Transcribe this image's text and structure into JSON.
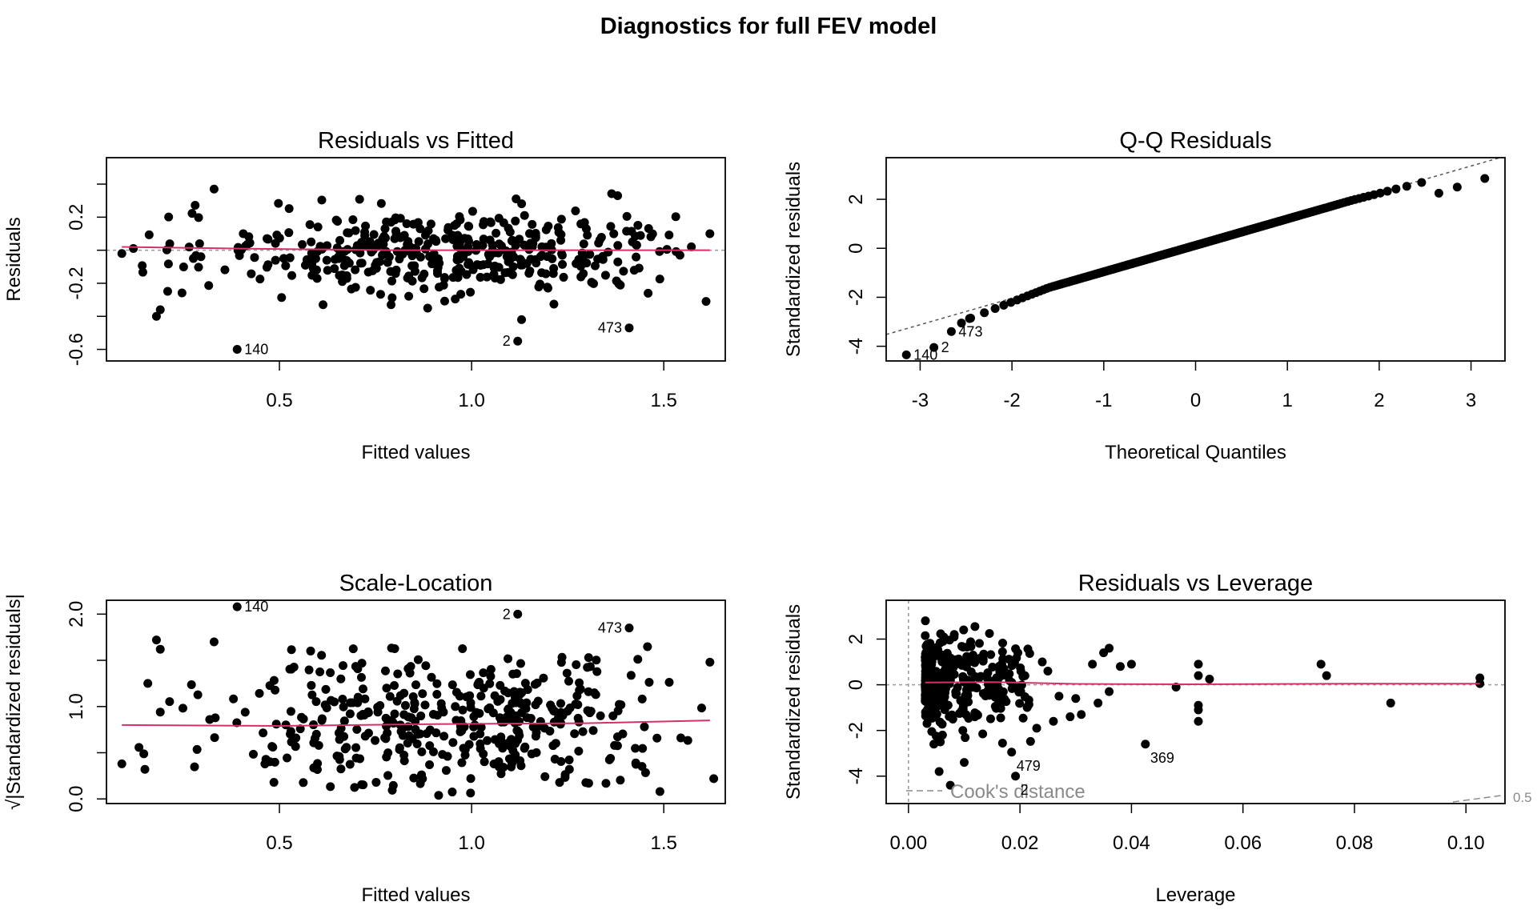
{
  "figure": {
    "title": "Diagnostics for full FEV model"
  },
  "chart_data": [
    {
      "type": "scatter",
      "panel": "residuals-vs-fitted",
      "title": "Residuals vs Fitted",
      "xlabel": "Fitted values",
      "ylabel": "Residuals",
      "xlim": [
        0.05,
        1.66
      ],
      "ylim": [
        -0.67,
        0.56
      ],
      "xticks": [
        0.5,
        1.0,
        1.5
      ],
      "xtick_labels": [
        "0.5",
        "1.0",
        "1.5"
      ],
      "yticks": [
        -0.6,
        -0.4,
        -0.2,
        0.0,
        0.2,
        0.4
      ],
      "ytick_labels": [
        "-0.6",
        "",
        "-0.2",
        "",
        "0.2",
        ""
      ],
      "ref_line": 0,
      "cloud": {
        "n": 420,
        "x_range": [
          0.12,
          1.6
        ],
        "x_center": 0.95,
        "y_sd": 0.13,
        "seed": 11
      },
      "points": [
        {
          "x": 0.09,
          "y": -0.02
        },
        {
          "x": 0.18,
          "y": -0.4
        },
        {
          "x": 0.19,
          "y": -0.36
        },
        {
          "x": 0.33,
          "y": 0.37
        },
        {
          "x": 1.38,
          "y": 0.33
        },
        {
          "x": 1.61,
          "y": -0.31
        },
        {
          "x": 1.62,
          "y": 0.1
        },
        {
          "x": 1.13,
          "y": -0.42
        },
        {
          "x": 0.39,
          "y": -0.6
        },
        {
          "x": 1.12,
          "y": -0.55
        },
        {
          "x": 1.41,
          "y": -0.47
        }
      ],
      "labeled_points": [
        {
          "label": "140",
          "x": 0.39,
          "y": -0.6,
          "side": "right"
        },
        {
          "label": "2",
          "x": 1.12,
          "y": -0.55,
          "side": "left"
        },
        {
          "label": "473",
          "x": 1.41,
          "y": -0.47,
          "side": "left"
        }
      ],
      "smooth": [
        [
          0.09,
          0.02
        ],
        [
          0.4,
          0.01
        ],
        [
          0.8,
          0.0
        ],
        [
          1.2,
          0.0
        ],
        [
          1.62,
          0.0
        ]
      ]
    },
    {
      "type": "scatter",
      "panel": "qq-residuals",
      "title": "Q-Q Residuals",
      "xlabel": "Theoretical Quantiles",
      "ylabel": "Standardized residuals",
      "xlim": [
        -3.37,
        3.37
      ],
      "ylim": [
        -4.6,
        3.7
      ],
      "xticks": [
        -3,
        -2,
        -1,
        0,
        1,
        2,
        3
      ],
      "xtick_labels": [
        "-3",
        "-2",
        "-1",
        "0",
        "1",
        "2",
        "3"
      ],
      "yticks": [
        -4,
        -2,
        0,
        2
      ],
      "ytick_labels": [
        "-4",
        "-2",
        "0",
        "2"
      ],
      "qq_line": {
        "intercept": 0.12,
        "slope": 1.08
      },
      "cloud": {
        "n": 260,
        "range": [
          -2.55,
          2.55
        ]
      },
      "points": [
        {
          "x": -3.15,
          "y": -4.35
        },
        {
          "x": -2.85,
          "y": -4.05
        },
        {
          "x": -2.66,
          "y": -3.4
        },
        {
          "x": -2.55,
          "y": -3.05
        },
        {
          "x": -2.45,
          "y": -2.85
        },
        {
          "x": 2.65,
          "y": 2.25
        },
        {
          "x": 2.85,
          "y": 2.5
        },
        {
          "x": 3.15,
          "y": 2.85
        }
      ],
      "labeled_points": [
        {
          "label": "140",
          "x": -3.15,
          "y": -4.35,
          "side": "right"
        },
        {
          "label": "2",
          "x": -2.85,
          "y": -4.05,
          "side": "right"
        },
        {
          "label": "473",
          "x": -2.66,
          "y": -3.4,
          "side": "right"
        }
      ]
    },
    {
      "type": "scatter",
      "panel": "scale-location",
      "title": "Scale-Location",
      "xlabel": "Fitted values",
      "ylabel": "√|Standardized residuals|",
      "xlim": [
        0.05,
        1.66
      ],
      "ylim": [
        -0.05,
        2.15
      ],
      "xticks": [
        0.5,
        1.0,
        1.5
      ],
      "xtick_labels": [
        "0.5",
        "1.0",
        "1.5"
      ],
      "yticks": [
        0.0,
        0.5,
        1.0,
        1.5,
        2.0
      ],
      "ytick_labels": [
        "0.0",
        "",
        "1.0",
        "",
        "2.0"
      ],
      "cloud": {
        "n": 420,
        "x_range": [
          0.12,
          1.6
        ],
        "x_center": 0.95,
        "y_sd": 0.35,
        "seed": 23
      },
      "points": [
        {
          "x": 0.09,
          "y": 0.38
        },
        {
          "x": 0.15,
          "y": 0.32
        },
        {
          "x": 0.18,
          "y": 1.72
        },
        {
          "x": 0.19,
          "y": 1.62
        },
        {
          "x": 0.33,
          "y": 1.7
        },
        {
          "x": 1.62,
          "y": 1.48
        },
        {
          "x": 1.63,
          "y": 0.22
        },
        {
          "x": 1.49,
          "y": 0.08
        },
        {
          "x": 0.39,
          "y": 2.08
        },
        {
          "x": 1.12,
          "y": 2.0
        },
        {
          "x": 1.41,
          "y": 1.85
        }
      ],
      "labeled_points": [
        {
          "label": "140",
          "x": 0.39,
          "y": 2.08,
          "side": "right"
        },
        {
          "label": "2",
          "x": 1.12,
          "y": 2.0,
          "side": "left"
        },
        {
          "label": "473",
          "x": 1.41,
          "y": 1.85,
          "side": "left"
        }
      ],
      "smooth": [
        [
          0.09,
          0.8
        ],
        [
          0.5,
          0.79
        ],
        [
          0.9,
          0.81
        ],
        [
          1.3,
          0.82
        ],
        [
          1.62,
          0.85
        ]
      ]
    },
    {
      "type": "scatter",
      "panel": "residuals-vs-leverage",
      "title": "Residuals vs Leverage",
      "xlabel": "Leverage",
      "ylabel": "Standardized residuals",
      "xlim": [
        -0.004,
        0.107
      ],
      "ylim": [
        -5.2,
        3.7
      ],
      "xticks": [
        0.0,
        0.02,
        0.04,
        0.06,
        0.08,
        0.1
      ],
      "xtick_labels": [
        "0.00",
        "0.02",
        "0.04",
        "0.06",
        "0.08",
        "0.10"
      ],
      "yticks": [
        -4,
        -2,
        0,
        2
      ],
      "ytick_labels": [
        "-4",
        "-2",
        "0",
        "2"
      ],
      "ref_line": 0,
      "cloud": {
        "n": 320,
        "x_range": [
          0.003,
          0.022
        ],
        "y_sd": 1.0,
        "seed": 37
      },
      "points": [
        {
          "x": 0.0075,
          "y": -4.4
        },
        {
          "x": 0.0055,
          "y": -3.8
        },
        {
          "x": 0.01,
          "y": -3.4
        },
        {
          "x": 0.0185,
          "y": -2.95
        },
        {
          "x": 0.0192,
          "y": -4.0
        },
        {
          "x": 0.0425,
          "y": -2.6
        },
        {
          "x": 0.033,
          "y": 0.9
        },
        {
          "x": 0.035,
          "y": 1.4
        },
        {
          "x": 0.036,
          "y": 1.6
        },
        {
          "x": 0.038,
          "y": 0.8
        },
        {
          "x": 0.04,
          "y": 0.9
        },
        {
          "x": 0.034,
          "y": -0.8
        },
        {
          "x": 0.036,
          "y": -0.3
        },
        {
          "x": 0.031,
          "y": -1.3
        },
        {
          "x": 0.048,
          "y": -0.1
        },
        {
          "x": 0.052,
          "y": 0.9
        },
        {
          "x": 0.052,
          "y": 0.4
        },
        {
          "x": 0.052,
          "y": -0.9
        },
        {
          "x": 0.052,
          "y": -1.1
        },
        {
          "x": 0.052,
          "y": -1.6
        },
        {
          "x": 0.054,
          "y": 0.25
        },
        {
          "x": 0.074,
          "y": 0.9
        },
        {
          "x": 0.075,
          "y": 0.4
        },
        {
          "x": 0.0865,
          "y": -0.8
        },
        {
          "x": 0.1025,
          "y": 0.3
        },
        {
          "x": 0.1025,
          "y": 0.05
        },
        {
          "x": 0.025,
          "y": 0.6
        },
        {
          "x": 0.027,
          "y": -0.5
        },
        {
          "x": 0.029,
          "y": -1.4
        },
        {
          "x": 0.03,
          "y": -0.6
        },
        {
          "x": 0.023,
          "y": -1.9
        },
        {
          "x": 0.026,
          "y": -1.6
        },
        {
          "x": 0.024,
          "y": 1.0
        }
      ],
      "labeled_points": [
        {
          "label": "479",
          "x": 0.0185,
          "y": -2.95,
          "side": "below-right"
        },
        {
          "label": "2",
          "x": 0.0192,
          "y": -4.0,
          "side": "below-right"
        },
        {
          "label": "369",
          "x": 0.0425,
          "y": -2.6,
          "side": "below-right"
        }
      ],
      "smooth": [
        [
          0.003,
          0.1
        ],
        [
          0.015,
          0.12
        ],
        [
          0.03,
          0.04
        ],
        [
          0.05,
          0.02
        ],
        [
          0.08,
          0.05
        ],
        [
          0.1025,
          0.05
        ]
      ],
      "legend": {
        "text": "Cook's distance",
        "position": "bottom-left"
      },
      "cooks_contour_label": "0.5"
    }
  ]
}
